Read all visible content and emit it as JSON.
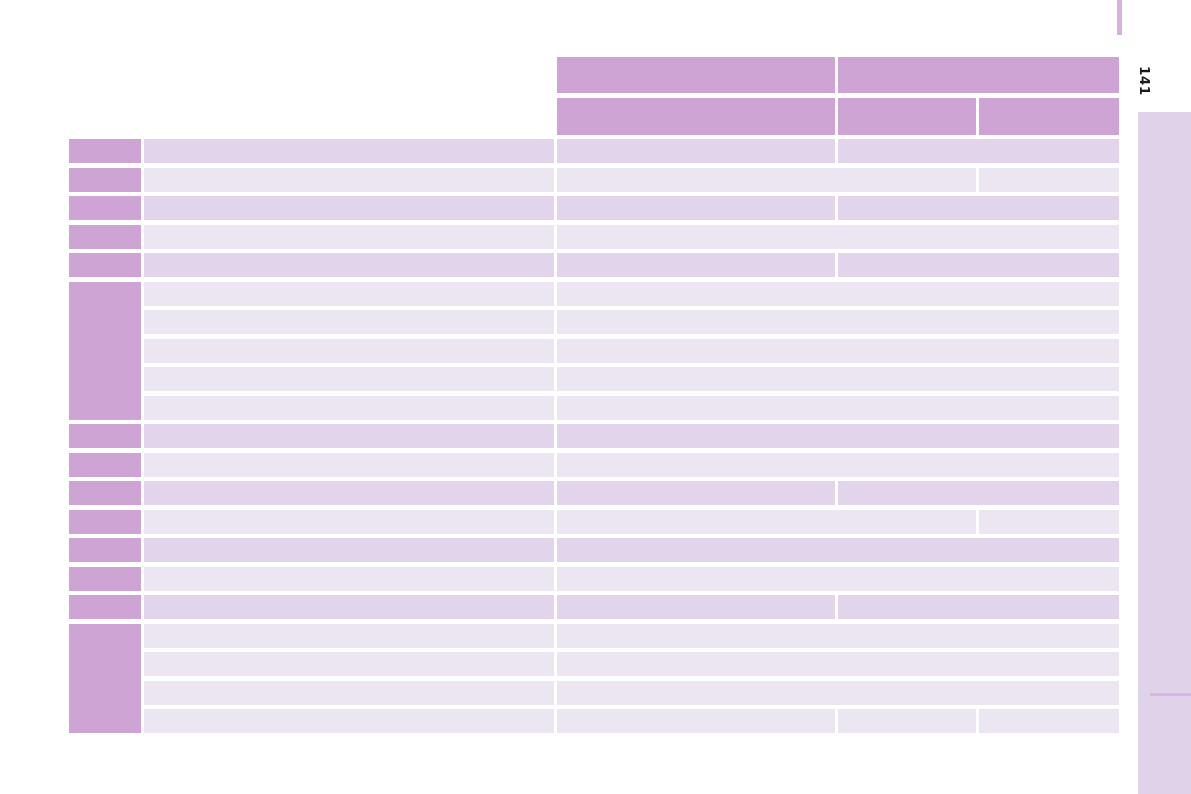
{
  "page": {
    "number": "141"
  },
  "palette": {
    "header": "#cda4d3",
    "row_mid": "#e2d4ea",
    "row_light": "#ece6f3",
    "sidebar": "#e0d3e9",
    "sidebar_divider": "#d4bade",
    "top_marker": "#d5b3db",
    "page_number_color": "#1a1a1a",
    "page_bg": "#ffffff"
  },
  "table": {
    "header_rows": [
      {
        "cells": [
          {
            "col": 3,
            "span": 1,
            "label": ""
          },
          {
            "col": 4,
            "span": 2,
            "label": ""
          }
        ]
      },
      {
        "cells": [
          {
            "col": 3,
            "span": 1,
            "label": ""
          },
          {
            "col": 4,
            "span": 1,
            "label": ""
          },
          {
            "col": 5,
            "span": 1,
            "label": ""
          }
        ]
      }
    ],
    "body_rows": [
      {
        "shade": "mid",
        "label_span": 1,
        "label": "",
        "name": "",
        "data_cells": [
          {
            "col": 3,
            "span": 1,
            "value": ""
          },
          {
            "col": 4,
            "span": 2,
            "value": ""
          }
        ]
      },
      {
        "shade": "light",
        "label_span": 1,
        "label": "",
        "name": "",
        "data_cells": [
          {
            "col": 3,
            "span": 2,
            "value": ""
          },
          {
            "col": 5,
            "span": 1,
            "value": ""
          }
        ]
      },
      {
        "shade": "mid",
        "label_span": 1,
        "label": "",
        "name": "",
        "data_cells": [
          {
            "col": 3,
            "span": 1,
            "value": ""
          },
          {
            "col": 4,
            "span": 2,
            "value": ""
          }
        ]
      },
      {
        "shade": "light",
        "label_span": 1,
        "label": "",
        "name": "",
        "data_cells": [
          {
            "col": 3,
            "span": 3,
            "value": ""
          }
        ]
      },
      {
        "shade": "mid",
        "label_span": 1,
        "label": "",
        "name": "",
        "data_cells": [
          {
            "col": 3,
            "span": 1,
            "value": ""
          },
          {
            "col": 4,
            "span": 2,
            "value": ""
          }
        ]
      },
      {
        "shade": "light",
        "label_span": 5,
        "label": "",
        "name": "",
        "data_cells": [
          {
            "col": 3,
            "span": 3,
            "value": ""
          }
        ]
      },
      {
        "shade": "light",
        "label_span": 0,
        "label": "",
        "name": "",
        "data_cells": [
          {
            "col": 3,
            "span": 3,
            "value": ""
          }
        ]
      },
      {
        "shade": "light",
        "label_span": 0,
        "label": "",
        "name": "",
        "data_cells": [
          {
            "col": 3,
            "span": 3,
            "value": ""
          }
        ]
      },
      {
        "shade": "light",
        "label_span": 0,
        "label": "",
        "name": "",
        "data_cells": [
          {
            "col": 3,
            "span": 3,
            "value": ""
          }
        ]
      },
      {
        "shade": "light",
        "label_span": 0,
        "label": "",
        "name": "",
        "data_cells": [
          {
            "col": 3,
            "span": 3,
            "value": ""
          }
        ]
      },
      {
        "shade": "mid",
        "label_span": 1,
        "label": "",
        "name": "",
        "data_cells": [
          {
            "col": 3,
            "span": 3,
            "value": ""
          }
        ]
      },
      {
        "shade": "light",
        "label_span": 1,
        "label": "",
        "name": "",
        "data_cells": [
          {
            "col": 3,
            "span": 3,
            "value": ""
          }
        ]
      },
      {
        "shade": "mid",
        "label_span": 1,
        "label": "",
        "name": "",
        "data_cells": [
          {
            "col": 3,
            "span": 1,
            "value": ""
          },
          {
            "col": 4,
            "span": 2,
            "value": ""
          }
        ]
      },
      {
        "shade": "light",
        "label_span": 1,
        "label": "",
        "name": "",
        "data_cells": [
          {
            "col": 3,
            "span": 2,
            "value": ""
          },
          {
            "col": 5,
            "span": 1,
            "value": ""
          }
        ]
      },
      {
        "shade": "mid",
        "label_span": 1,
        "label": "",
        "name": "",
        "data_cells": [
          {
            "col": 3,
            "span": 3,
            "value": ""
          }
        ]
      },
      {
        "shade": "light",
        "label_span": 1,
        "label": "",
        "name": "",
        "data_cells": [
          {
            "col": 3,
            "span": 3,
            "value": ""
          }
        ]
      },
      {
        "shade": "mid",
        "label_span": 1,
        "label": "",
        "name": "",
        "data_cells": [
          {
            "col": 3,
            "span": 1,
            "value": ""
          },
          {
            "col": 4,
            "span": 2,
            "value": ""
          }
        ]
      },
      {
        "shade": "light",
        "label_span": 4,
        "label": "",
        "name": "",
        "data_cells": [
          {
            "col": 3,
            "span": 3,
            "value": ""
          }
        ]
      },
      {
        "shade": "light",
        "label_span": 0,
        "label": "",
        "name": "",
        "data_cells": [
          {
            "col": 3,
            "span": 3,
            "value": ""
          }
        ]
      },
      {
        "shade": "light",
        "label_span": 0,
        "label": "",
        "name": "",
        "data_cells": [
          {
            "col": 3,
            "span": 3,
            "value": ""
          }
        ]
      },
      {
        "shade": "light",
        "label_span": 0,
        "label": "",
        "name": "",
        "data_cells": [
          {
            "col": 3,
            "span": 1,
            "value": ""
          },
          {
            "col": 4,
            "span": 1,
            "value": ""
          },
          {
            "col": 5,
            "span": 1,
            "value": ""
          }
        ]
      }
    ]
  }
}
